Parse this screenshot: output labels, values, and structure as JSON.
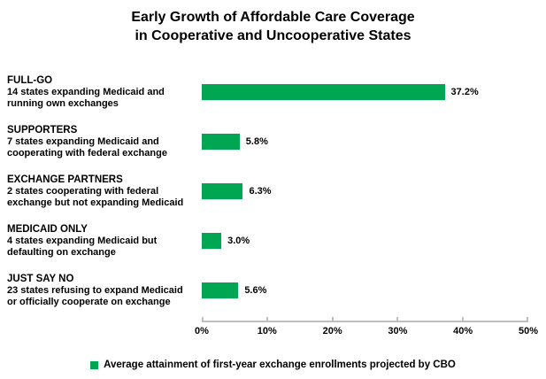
{
  "title": {
    "line1": "Early Growth of Affordable Care Coverage",
    "line2": "in Cooperative and Uncooperative States"
  },
  "colors": {
    "bar": "#00A651",
    "axis": "#BFBFBF",
    "text": "#000000"
  },
  "chart_data": {
    "type": "bar",
    "orientation": "horizontal",
    "title": "Early Growth of Affordable Care Coverage in Cooperative and Uncooperative States",
    "categories": [
      "FULL-GO",
      "SUPPORTERS",
      "EXCHANGE PARTNERS",
      "MEDICAID ONLY",
      "JUST SAY NO"
    ],
    "descriptions": [
      "14 states expanding Medicaid and\nrunning own exchanges",
      "7 states expanding Medicaid and\ncooperating with federal exchange",
      "2 states cooperating with federal\nexchange but not expanding Medicaid",
      "4 states expanding Medicaid but\ndefaulting on exchange",
      "23 states refusing to expand Medicaid\nor officially cooperate on exchange"
    ],
    "values": [
      37.2,
      5.8,
      6.3,
      3.0,
      5.6
    ],
    "value_labels": [
      "37.2%",
      "5.8%",
      "6.3%",
      "3.0%",
      "5.6%"
    ],
    "xlim": [
      0,
      50
    ],
    "x_ticks": [
      "0%",
      "10%",
      "20%",
      "30%",
      "40%",
      "50%"
    ],
    "grid": "off",
    "legend_position": "bottom",
    "legend": "Average attainment of first-year exchange enrollments projected by CBO"
  }
}
